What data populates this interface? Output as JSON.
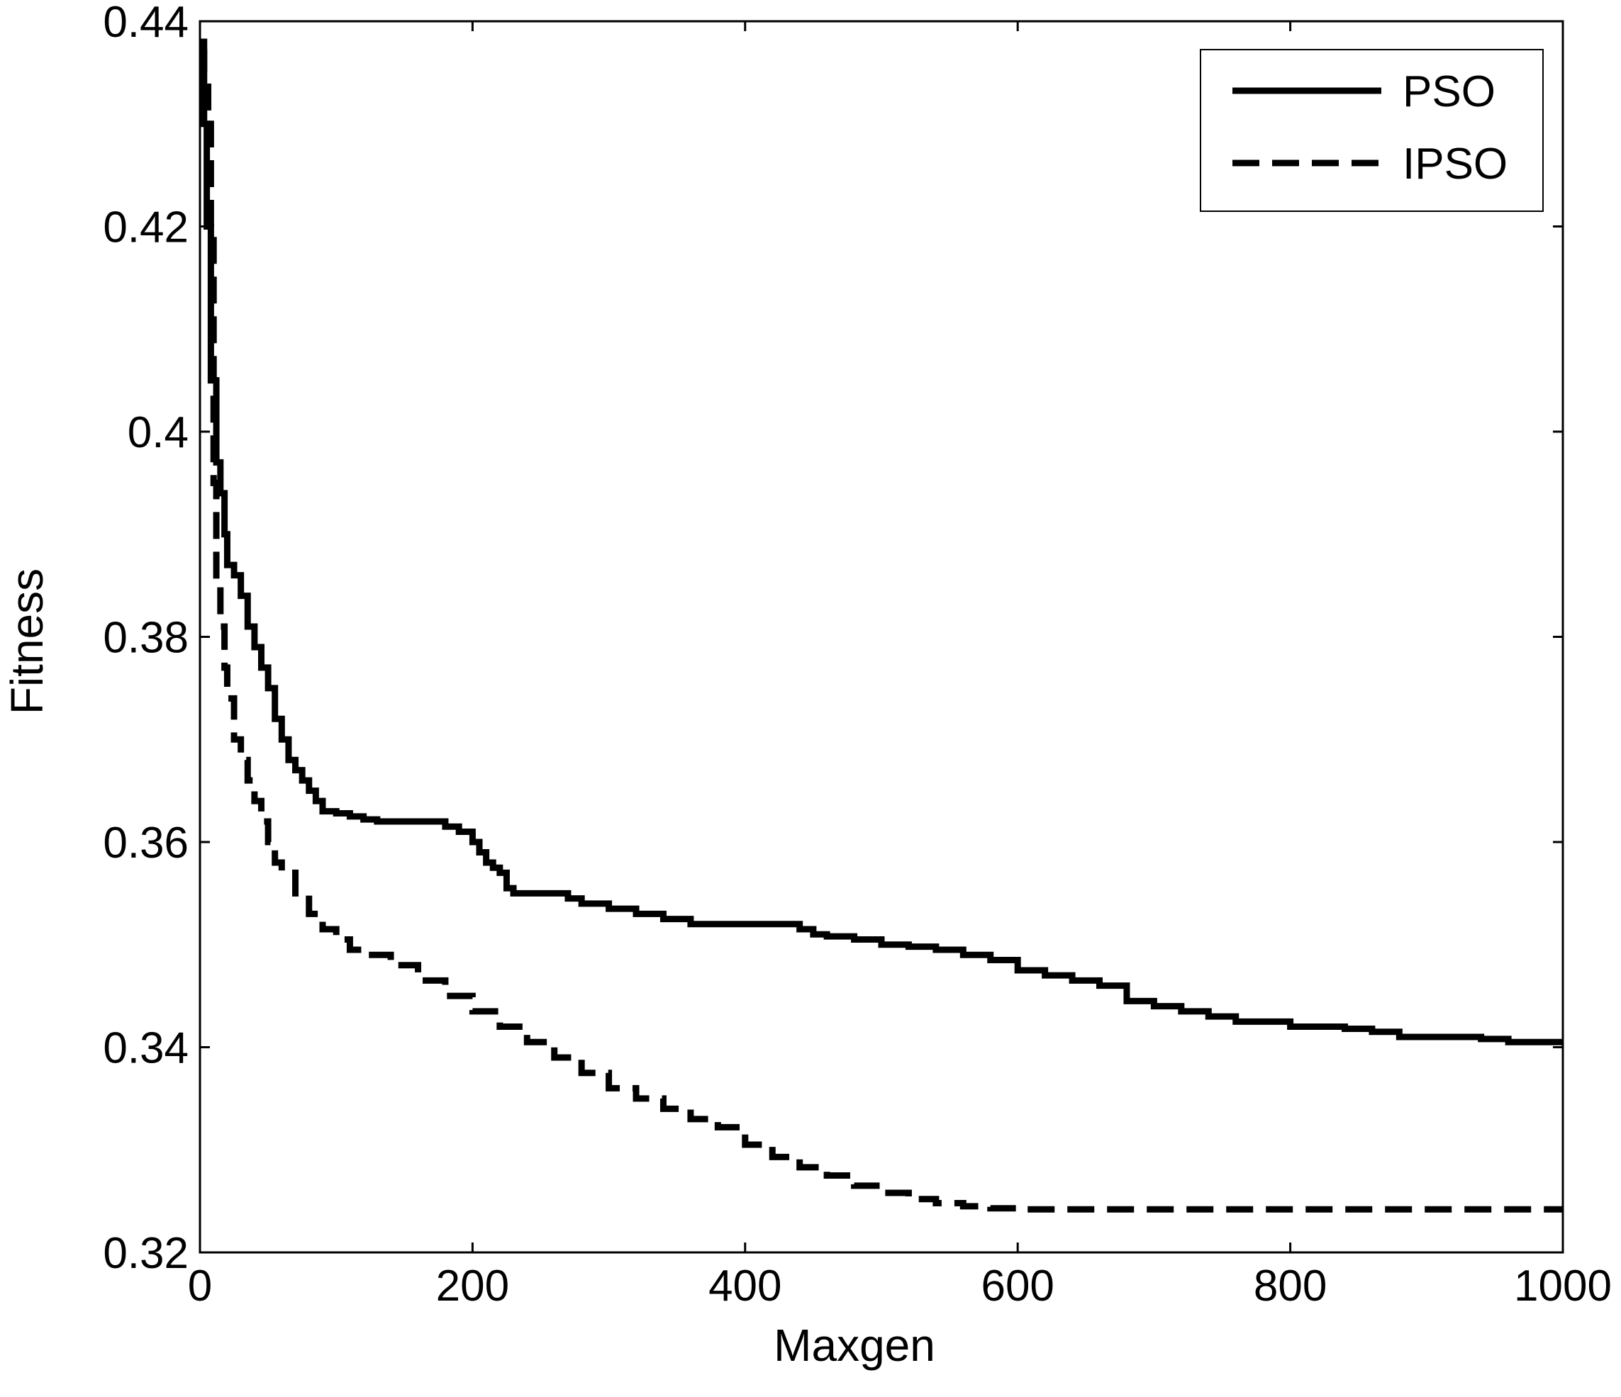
{
  "chart_data": {
    "type": "line",
    "title": "",
    "xlabel": "Maxgen",
    "ylabel": "Fitness",
    "xlim": [
      0,
      1000
    ],
    "ylim": [
      0.32,
      0.44
    ],
    "xticks": [
      0,
      200,
      400,
      600,
      800,
      1000
    ],
    "xtick_labels": [
      "0",
      "200",
      "400",
      "600",
      "800",
      "1000"
    ],
    "yticks": [
      0.32,
      0.34,
      0.36,
      0.38,
      0.4,
      0.42,
      0.44
    ],
    "ytick_labels": [
      "0.32",
      "0.34",
      "0.36",
      "0.38",
      "0.4",
      "0.42",
      "0.44"
    ],
    "grid": false,
    "legend": "top-right",
    "series": [
      {
        "name": "PSO",
        "style": "solid",
        "color": "#000000",
        "x": [
          0,
          3,
          5,
          8,
          12,
          15,
          18,
          20,
          22,
          25,
          30,
          35,
          40,
          45,
          50,
          55,
          60,
          65,
          70,
          75,
          80,
          85,
          90,
          100,
          110,
          120,
          130,
          140,
          150,
          170,
          180,
          190,
          200,
          205,
          210,
          215,
          220,
          225,
          230,
          240,
          260,
          270,
          280,
          300,
          320,
          340,
          360,
          380,
          400,
          420,
          440,
          450,
          460,
          480,
          500,
          520,
          540,
          560,
          580,
          600,
          620,
          640,
          660,
          680,
          700,
          720,
          740,
          760,
          780,
          800,
          820,
          840,
          860,
          880,
          900,
          920,
          940,
          960,
          980,
          1000
        ],
        "y": [
          0.438,
          0.43,
          0.42,
          0.405,
          0.397,
          0.394,
          0.39,
          0.387,
          0.387,
          0.386,
          0.384,
          0.381,
          0.379,
          0.377,
          0.375,
          0.372,
          0.37,
          0.368,
          0.367,
          0.366,
          0.365,
          0.364,
          0.363,
          0.3628,
          0.3625,
          0.3622,
          0.362,
          0.362,
          0.362,
          0.362,
          0.3615,
          0.361,
          0.36,
          0.359,
          0.358,
          0.3575,
          0.357,
          0.3555,
          0.355,
          0.355,
          0.355,
          0.3545,
          0.354,
          0.3535,
          0.353,
          0.3525,
          0.352,
          0.352,
          0.352,
          0.352,
          0.3515,
          0.351,
          0.3508,
          0.3505,
          0.35,
          0.3498,
          0.3495,
          0.349,
          0.3485,
          0.3475,
          0.347,
          0.3465,
          0.346,
          0.3445,
          0.344,
          0.3435,
          0.343,
          0.3425,
          0.3425,
          0.342,
          0.342,
          0.3418,
          0.3415,
          0.341,
          0.341,
          0.341,
          0.3408,
          0.3405,
          0.3405,
          0.3405
        ]
      },
      {
        "name": "IPSO",
        "style": "dashed",
        "color": "#000000",
        "x": [
          0,
          3,
          6,
          8,
          10,
          12,
          15,
          18,
          20,
          25,
          30,
          35,
          40,
          45,
          50,
          55,
          60,
          70,
          80,
          90,
          100,
          110,
          120,
          140,
          160,
          180,
          200,
          220,
          240,
          260,
          280,
          300,
          320,
          340,
          360,
          380,
          400,
          420,
          440,
          460,
          480,
          500,
          520,
          540,
          560,
          580,
          600,
          650,
          700,
          800,
          900,
          1000
        ],
        "y": [
          0.437,
          0.435,
          0.43,
          0.42,
          0.395,
          0.385,
          0.381,
          0.377,
          0.374,
          0.37,
          0.368,
          0.366,
          0.364,
          0.362,
          0.36,
          0.358,
          0.357,
          0.355,
          0.353,
          0.3515,
          0.3505,
          0.3495,
          0.349,
          0.348,
          0.3465,
          0.345,
          0.3435,
          0.342,
          0.3405,
          0.339,
          0.3375,
          0.336,
          0.335,
          0.334,
          0.333,
          0.3322,
          0.3305,
          0.3293,
          0.3283,
          0.3275,
          0.3265,
          0.3258,
          0.3252,
          0.3248,
          0.3245,
          0.3243,
          0.3242,
          0.3242,
          0.3242,
          0.3242,
          0.3242,
          0.3242
        ]
      }
    ]
  }
}
